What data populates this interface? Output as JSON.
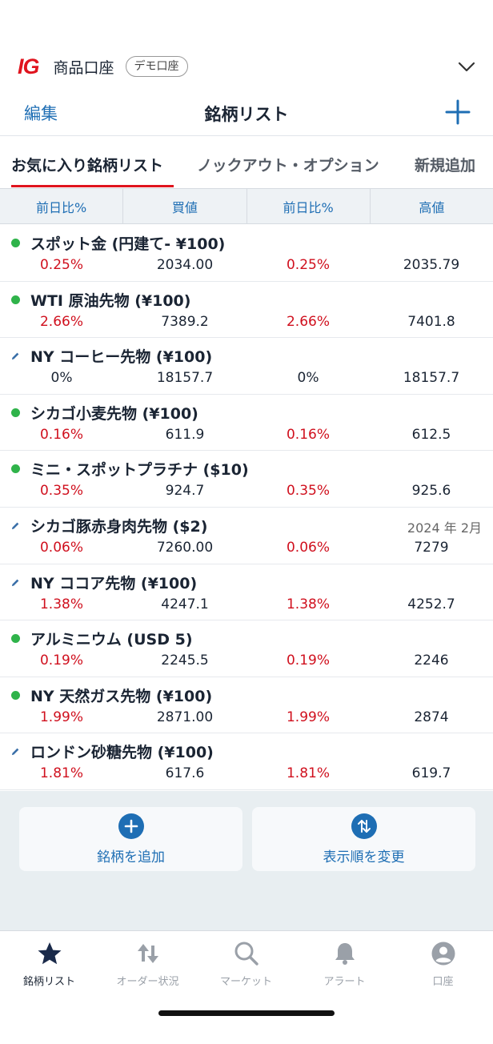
{
  "header": {
    "logo": "IG",
    "account": "商品口座",
    "badge": "デモ口座"
  },
  "nav": {
    "edit": "編集",
    "title": "銘柄リスト"
  },
  "tabs": [
    "お気に入り銘柄リスト",
    "ノックアウト・オプション",
    "新規追加"
  ],
  "columns": [
    "前日比%",
    "買値",
    "前日比%",
    "高値"
  ],
  "rows": [
    {
      "marker": "dot",
      "name": "スポット金 (円建て- ¥100)",
      "expiry": "",
      "c1": "0.25%",
      "c2": "2034.00",
      "c3": "0.25%",
      "c4": "2035.79",
      "red": true
    },
    {
      "marker": "dot",
      "name": "WTI 原油先物 (¥100)",
      "expiry": "",
      "c1": "2.66%",
      "c2": "7389.2",
      "c3": "2.66%",
      "c4": "7401.8",
      "red": true
    },
    {
      "marker": "pencil",
      "name": "NY コーヒー先物 (¥100)",
      "expiry": "",
      "c1": "0%",
      "c2": "18157.7",
      "c3": "0%",
      "c4": "18157.7",
      "red": false
    },
    {
      "marker": "dot",
      "name": "シカゴ小麦先物 (¥100)",
      "expiry": "",
      "c1": "0.16%",
      "c2": "611.9",
      "c3": "0.16%",
      "c4": "612.5",
      "red": true
    },
    {
      "marker": "dot",
      "name": "ミニ・スポットプラチナ ($10)",
      "expiry": "",
      "c1": "0.35%",
      "c2": "924.7",
      "c3": "0.35%",
      "c4": "925.6",
      "red": true
    },
    {
      "marker": "pencil",
      "name": "シカゴ豚赤身肉先物 ($2)",
      "expiry": "2024 年 2月",
      "c1": "0.06%",
      "c2": "7260.00",
      "c3": "0.06%",
      "c4": "7279",
      "red": true
    },
    {
      "marker": "pencil",
      "name": "NY ココア先物 (¥100)",
      "expiry": "",
      "c1": "1.38%",
      "c2": "4247.1",
      "c3": "1.38%",
      "c4": "4252.7",
      "red": true
    },
    {
      "marker": "dot",
      "name": "アルミニウム (USD 5)",
      "expiry": "",
      "c1": "0.19%",
      "c2": "2245.5",
      "c3": "0.19%",
      "c4": "2246",
      "red": true
    },
    {
      "marker": "dot",
      "name": "NY 天然ガス先物 (¥100)",
      "expiry": "",
      "c1": "1.99%",
      "c2": "2871.00",
      "c3": "1.99%",
      "c4": "2874",
      "red": true
    },
    {
      "marker": "pencil",
      "name": "ロンドン砂糖先物 (¥100)",
      "expiry": "",
      "c1": "1.81%",
      "c2": "617.6",
      "c3": "1.81%",
      "c4": "619.7",
      "red": true
    }
  ],
  "actions": {
    "add": "銘柄を追加",
    "reorder": "表示順を変更"
  },
  "bottom_nav": [
    "銘柄リスト",
    "オーダー状況",
    "マーケット",
    "アラート",
    "口座"
  ],
  "colors": {
    "accent": "#1e6eb4",
    "brand_red": "#e0141e",
    "negative": "#d0101e",
    "status_dot": "#2fb34a"
  }
}
